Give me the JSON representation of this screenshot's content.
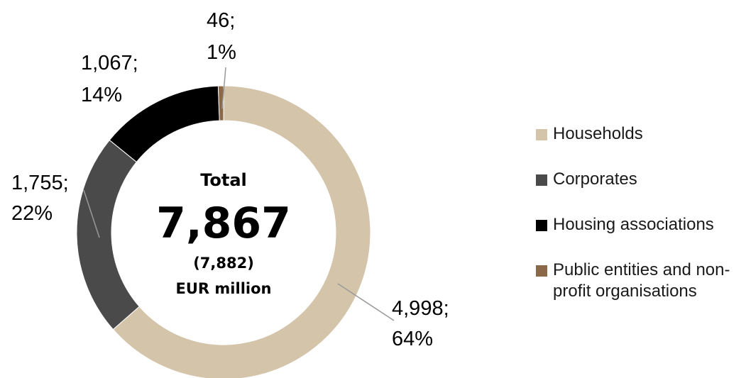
{
  "colors": {
    "households": "#d4c4a9",
    "corporates": "#4a4a4a",
    "housing": "#000000",
    "public": "#8b6848",
    "leader": "#999999"
  },
  "center": {
    "label": "Total",
    "value": "7,867",
    "previous": "(7,882)",
    "unit": "EUR million"
  },
  "chart_data": {
    "type": "pie",
    "donut": true,
    "categories": [
      "Households",
      "Corporates",
      "Housing associations",
      "Public entities and non-profit organisations"
    ],
    "values": [
      4998,
      1755,
      1067,
      46
    ],
    "percents": [
      64,
      22,
      14,
      1
    ],
    "labels": [
      [
        "4,998;",
        "64%"
      ],
      [
        "1,755;",
        "22%"
      ],
      [
        "1,067;",
        "14%"
      ],
      [
        "46;",
        "1%"
      ]
    ],
    "legend_position": "right"
  },
  "legend": [
    {
      "lines": [
        "Households"
      ],
      "color": "#d4c4a9"
    },
    {
      "lines": [
        "Corporates"
      ],
      "color": "#4a4a4a"
    },
    {
      "lines": [
        "Housing associations"
      ],
      "color": "#000000"
    },
    {
      "lines": [
        "Public entities and non-",
        "profit organisations"
      ],
      "color": "#8b6848"
    }
  ]
}
